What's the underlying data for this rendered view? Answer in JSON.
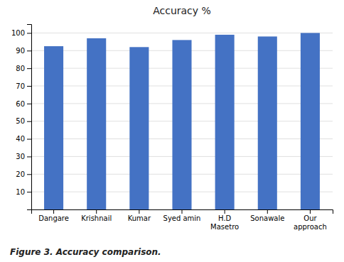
{
  "chart_data": {
    "type": "bar",
    "title": "Accuracy %",
    "categories": [
      "Dangare",
      "Krishnail",
      "Kumar",
      "Syed amin",
      "H.D\nMasetro",
      "Sonawale",
      "Our\napproach"
    ],
    "values": [
      92.5,
      97.0,
      92.0,
      96.0,
      99.0,
      98.0,
      100.0
    ],
    "color": "#4472C4",
    "ylim": [
      0,
      105
    ],
    "yticks": [
      10,
      20,
      30,
      40,
      50,
      60,
      70,
      80,
      90,
      100
    ],
    "grid": true,
    "caption": "Figure 3. Accuracy comparison."
  }
}
